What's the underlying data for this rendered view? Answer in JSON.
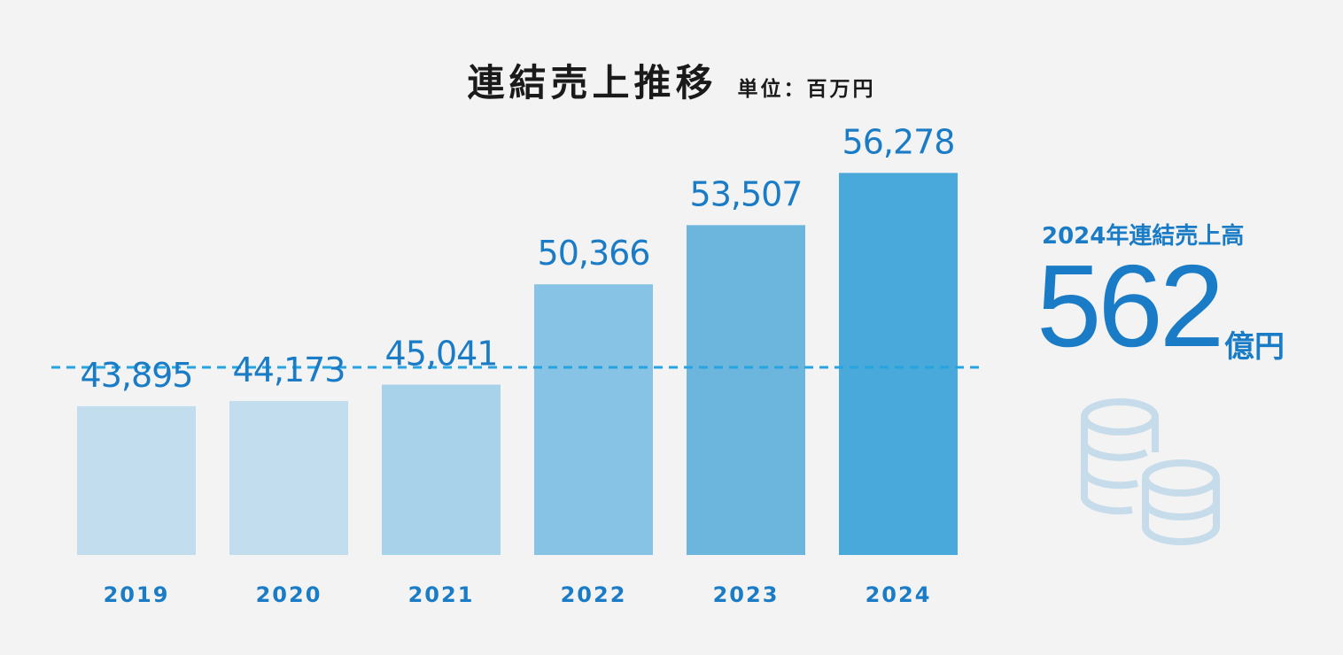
{
  "title": {
    "main": "連結売上推移",
    "unit": "単位：百万円"
  },
  "chart_data": {
    "type": "bar",
    "categories": [
      "2019",
      "2020",
      "2021",
      "2022",
      "2023",
      "2024"
    ],
    "values": [
      43895,
      44173,
      45041,
      50366,
      53507,
      56278
    ],
    "value_labels": [
      "43,895",
      "44,173",
      "45,041",
      "50,366",
      "53,507",
      "56,278"
    ],
    "bar_colors": [
      "#c2ddee",
      "#c2ddee",
      "#a8d1ea",
      "#86c3e4",
      "#6cb6de",
      "#4aa9db"
    ],
    "reference_line": {
      "style": "dashed",
      "color": "#27a4e0"
    },
    "grid": false,
    "legend": "none",
    "ylim": [
      36000,
      57000
    ]
  },
  "summary": {
    "label": "2024年連結売上高",
    "number": "562",
    "unit": "億円",
    "icon": "coins-icon"
  },
  "colors": {
    "accent": "#1a7cc6",
    "background": "#f3f3f3",
    "icon": "#c6dcea"
  }
}
